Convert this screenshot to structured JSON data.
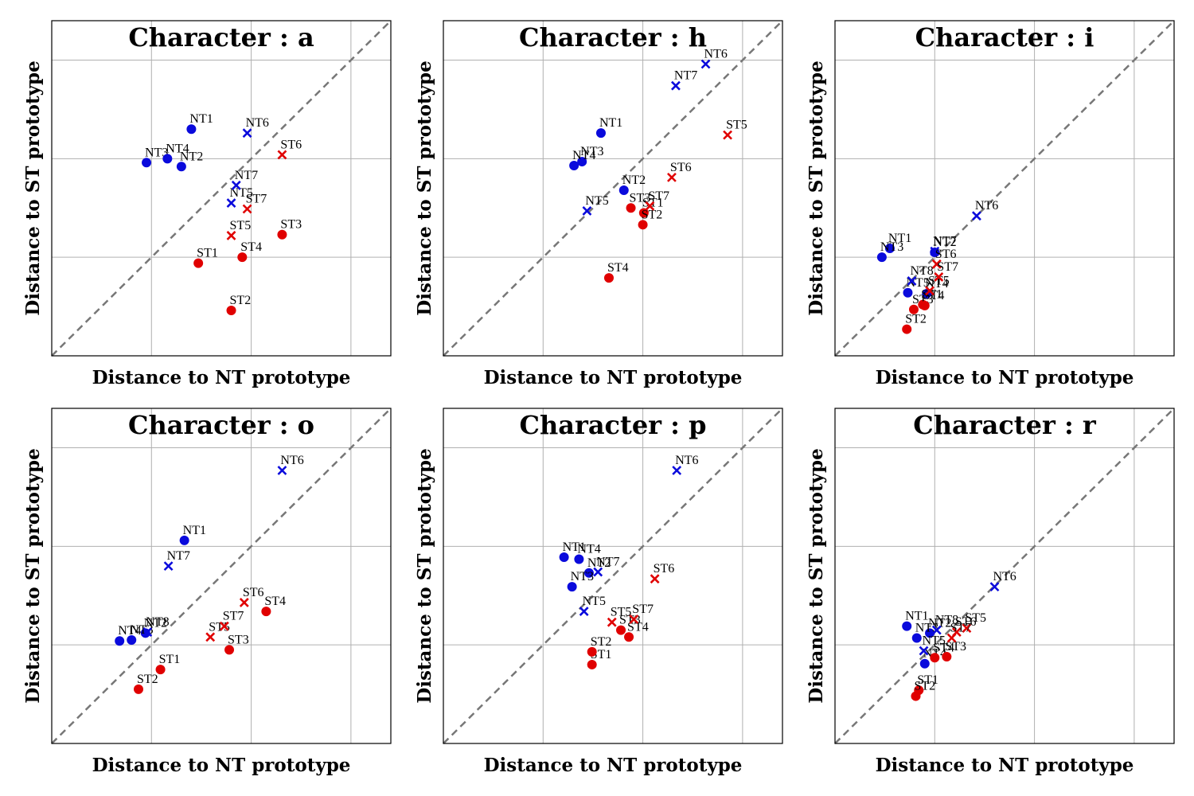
{
  "colors": {
    "NT": "#0a0adc",
    "ST": "#e00000",
    "grid": "#b0b0b0",
    "diagonal": "#777777"
  },
  "chart_data": [
    {
      "type": "scatter",
      "title": "Character : a",
      "xlabel": "Distance to NT prototype",
      "ylabel": "Distance to ST prototype",
      "xlim": [
        0,
        3.4
      ],
      "ylim": [
        0,
        3.4
      ],
      "grid": true,
      "diagonal": true,
      "points": [
        {
          "label": "NT1",
          "group": "NT",
          "marker": "circle",
          "x": 1.4,
          "y": 2.3
        },
        {
          "label": "NT2",
          "group": "NT",
          "marker": "circle",
          "x": 1.3,
          "y": 1.92
        },
        {
          "label": "NT3",
          "group": "NT",
          "marker": "circle",
          "x": 0.95,
          "y": 1.96
        },
        {
          "label": "NT4",
          "group": "NT",
          "marker": "circle",
          "x": 1.16,
          "y": 2.0
        },
        {
          "label": "NT5",
          "group": "NT",
          "marker": "cross",
          "x": 1.8,
          "y": 1.55
        },
        {
          "label": "NT6",
          "group": "NT",
          "marker": "cross",
          "x": 1.96,
          "y": 2.26
        },
        {
          "label": "NT7",
          "group": "NT",
          "marker": "cross",
          "x": 1.85,
          "y": 1.73
        },
        {
          "label": "ST1",
          "group": "ST",
          "marker": "circle",
          "x": 1.47,
          "y": 0.94
        },
        {
          "label": "ST2",
          "group": "ST",
          "marker": "circle",
          "x": 1.8,
          "y": 0.46
        },
        {
          "label": "ST3",
          "group": "ST",
          "marker": "circle",
          "x": 2.31,
          "y": 1.23
        },
        {
          "label": "ST4",
          "group": "ST",
          "marker": "circle",
          "x": 1.91,
          "y": 1.0
        },
        {
          "label": "ST5",
          "group": "ST",
          "marker": "cross",
          "x": 1.8,
          "y": 1.22
        },
        {
          "label": "ST6",
          "group": "ST",
          "marker": "cross",
          "x": 2.31,
          "y": 2.04
        },
        {
          "label": "ST7",
          "group": "ST",
          "marker": "cross",
          "x": 1.96,
          "y": 1.49
        }
      ]
    },
    {
      "type": "scatter",
      "title": "Character : h",
      "xlabel": "Distance to NT prototype",
      "ylabel": "Distance to ST prototype",
      "xlim": [
        0,
        3.4
      ],
      "ylim": [
        0,
        3.4
      ],
      "grid": true,
      "diagonal": true,
      "points": [
        {
          "label": "NT1",
          "group": "NT",
          "marker": "circle",
          "x": 1.58,
          "y": 2.26
        },
        {
          "label": "NT2",
          "group": "NT",
          "marker": "circle",
          "x": 1.81,
          "y": 1.68
        },
        {
          "label": "NT3",
          "group": "NT",
          "marker": "circle",
          "x": 1.39,
          "y": 1.97
        },
        {
          "label": "NT4",
          "group": "NT",
          "marker": "circle",
          "x": 1.31,
          "y": 1.93
        },
        {
          "label": "NT5",
          "group": "NT",
          "marker": "cross",
          "x": 1.44,
          "y": 1.47
        },
        {
          "label": "NT6",
          "group": "NT",
          "marker": "cross",
          "x": 2.63,
          "y": 2.96
        },
        {
          "label": "NT7",
          "group": "NT",
          "marker": "cross",
          "x": 2.33,
          "y": 2.74
        },
        {
          "label": "ST1",
          "group": "ST",
          "marker": "circle",
          "x": 2.01,
          "y": 1.45
        },
        {
          "label": "ST2",
          "group": "ST",
          "marker": "circle",
          "x": 2.0,
          "y": 1.33
        },
        {
          "label": "ST3",
          "group": "ST",
          "marker": "circle",
          "x": 1.88,
          "y": 1.5
        },
        {
          "label": "ST4",
          "group": "ST",
          "marker": "circle",
          "x": 1.66,
          "y": 0.79
        },
        {
          "label": "ST5",
          "group": "ST",
          "marker": "cross",
          "x": 2.85,
          "y": 2.24
        },
        {
          "label": "ST6",
          "group": "ST",
          "marker": "cross",
          "x": 2.29,
          "y": 1.81
        },
        {
          "label": "ST7",
          "group": "ST",
          "marker": "cross",
          "x": 2.07,
          "y": 1.52
        }
      ]
    },
    {
      "type": "scatter",
      "title": "Character : i",
      "xlabel": "Distance to NT prototype",
      "ylabel": "Distance to ST prototype",
      "xlim": [
        0,
        3.4
      ],
      "ylim": [
        0,
        3.4
      ],
      "grid": true,
      "diagonal": true,
      "points": [
        {
          "label": "NT1",
          "group": "NT",
          "marker": "circle",
          "x": 0.55,
          "y": 1.09
        },
        {
          "label": "NT2",
          "group": "NT",
          "marker": "circle",
          "x": 1.0,
          "y": 1.05
        },
        {
          "label": "NT3",
          "group": "NT",
          "marker": "circle",
          "x": 0.47,
          "y": 1.0
        },
        {
          "label": "NT4",
          "group": "NT",
          "marker": "circle",
          "x": 0.92,
          "y": 0.63
        },
        {
          "label": "NT5",
          "group": "NT",
          "marker": "circle",
          "x": 0.73,
          "y": 0.64
        },
        {
          "label": "NT6",
          "group": "NT",
          "marker": "cross",
          "x": 1.42,
          "y": 1.42
        },
        {
          "label": "NT7",
          "group": "NT",
          "marker": "cross",
          "x": 1.0,
          "y": 1.06
        },
        {
          "label": "NT8",
          "group": "NT",
          "marker": "cross",
          "x": 0.77,
          "y": 0.76
        },
        {
          "label": "ST1",
          "group": "ST",
          "marker": "circle",
          "x": 0.88,
          "y": 0.52
        },
        {
          "label": "ST2",
          "group": "ST",
          "marker": "circle",
          "x": 0.72,
          "y": 0.27
        },
        {
          "label": "ST3",
          "group": "ST",
          "marker": "circle",
          "x": 0.79,
          "y": 0.47
        },
        {
          "label": "ST4",
          "group": "ST",
          "marker": "circle",
          "x": 0.9,
          "y": 0.51
        },
        {
          "label": "ST5",
          "group": "ST",
          "marker": "cross",
          "x": 0.95,
          "y": 0.66
        },
        {
          "label": "ST6",
          "group": "ST",
          "marker": "cross",
          "x": 1.02,
          "y": 0.93
        },
        {
          "label": "ST7",
          "group": "ST",
          "marker": "cross",
          "x": 1.04,
          "y": 0.8
        }
      ]
    },
    {
      "type": "scatter",
      "title": "Character : o",
      "xlabel": "Distance to NT prototype",
      "ylabel": "Distance to ST prototype",
      "xlim": [
        0,
        3.4
      ],
      "ylim": [
        0,
        3.4
      ],
      "grid": true,
      "diagonal": true,
      "points": [
        {
          "label": "NT1",
          "group": "NT",
          "marker": "circle",
          "x": 1.33,
          "y": 2.06
        },
        {
          "label": "NT2",
          "group": "NT",
          "marker": "circle",
          "x": 0.94,
          "y": 1.12
        },
        {
          "label": "NT3",
          "group": "NT",
          "marker": "circle",
          "x": 0.8,
          "y": 1.05
        },
        {
          "label": "NT4",
          "group": "NT",
          "marker": "circle",
          "x": 0.68,
          "y": 1.04
        },
        {
          "label": "NT6",
          "group": "NT",
          "marker": "cross",
          "x": 2.31,
          "y": 2.77
        },
        {
          "label": "NT7",
          "group": "NT",
          "marker": "cross",
          "x": 1.17,
          "y": 1.8
        },
        {
          "label": "NT8",
          "group": "NT",
          "marker": "cross",
          "x": 0.96,
          "y": 1.13
        },
        {
          "label": "ST1",
          "group": "ST",
          "marker": "circle",
          "x": 1.09,
          "y": 0.75
        },
        {
          "label": "ST2",
          "group": "ST",
          "marker": "circle",
          "x": 0.87,
          "y": 0.55
        },
        {
          "label": "ST3",
          "group": "ST",
          "marker": "circle",
          "x": 1.78,
          "y": 0.95
        },
        {
          "label": "ST4",
          "group": "ST",
          "marker": "circle",
          "x": 2.15,
          "y": 1.34
        },
        {
          "label": "ST5",
          "group": "ST",
          "marker": "cross",
          "x": 1.59,
          "y": 1.08
        },
        {
          "label": "ST6",
          "group": "ST",
          "marker": "cross",
          "x": 1.93,
          "y": 1.43
        },
        {
          "label": "ST7",
          "group": "ST",
          "marker": "cross",
          "x": 1.73,
          "y": 1.19
        }
      ]
    },
    {
      "type": "scatter",
      "title": "Character : p",
      "xlabel": "Distance to NT prototype",
      "ylabel": "Distance to ST prototype",
      "xlim": [
        0,
        3.4
      ],
      "ylim": [
        0,
        3.4
      ],
      "grid": true,
      "diagonal": true,
      "points": [
        {
          "label": "NT1",
          "group": "NT",
          "marker": "circle",
          "x": 1.21,
          "y": 1.89
        },
        {
          "label": "NT2",
          "group": "NT",
          "marker": "circle",
          "x": 1.46,
          "y": 1.73
        },
        {
          "label": "NT3",
          "group": "NT",
          "marker": "circle",
          "x": 1.29,
          "y": 1.59
        },
        {
          "label": "NT4",
          "group": "NT",
          "marker": "circle",
          "x": 1.36,
          "y": 1.87
        },
        {
          "label": "NT5",
          "group": "NT",
          "marker": "cross",
          "x": 1.41,
          "y": 1.34
        },
        {
          "label": "NT6",
          "group": "NT",
          "marker": "cross",
          "x": 2.34,
          "y": 2.77
        },
        {
          "label": "NT7",
          "group": "NT",
          "marker": "cross",
          "x": 1.55,
          "y": 1.74
        },
        {
          "label": "ST1",
          "group": "ST",
          "marker": "circle",
          "x": 1.49,
          "y": 0.8
        },
        {
          "label": "ST2",
          "group": "ST",
          "marker": "circle",
          "x": 1.49,
          "y": 0.93
        },
        {
          "label": "ST3",
          "group": "ST",
          "marker": "circle",
          "x": 1.78,
          "y": 1.15
        },
        {
          "label": "ST4",
          "group": "ST",
          "marker": "circle",
          "x": 1.86,
          "y": 1.08
        },
        {
          "label": "ST5",
          "group": "ST",
          "marker": "cross",
          "x": 1.69,
          "y": 1.23
        },
        {
          "label": "ST6",
          "group": "ST",
          "marker": "cross",
          "x": 2.12,
          "y": 1.67
        },
        {
          "label": "ST7",
          "group": "ST",
          "marker": "cross",
          "x": 1.91,
          "y": 1.26
        }
      ]
    },
    {
      "type": "scatter",
      "title": "Character : r",
      "xlabel": "Distance to NT prototype",
      "ylabel": "Distance to ST prototype",
      "xlim": [
        0,
        3.4
      ],
      "ylim": [
        0,
        3.4
      ],
      "grid": true,
      "diagonal": true,
      "points": [
        {
          "label": "NT1",
          "group": "NT",
          "marker": "circle",
          "x": 0.72,
          "y": 1.19
        },
        {
          "label": "NT2",
          "group": "NT",
          "marker": "circle",
          "x": 0.95,
          "y": 1.12
        },
        {
          "label": "NT3",
          "group": "NT",
          "marker": "circle",
          "x": 0.82,
          "y": 1.07
        },
        {
          "label": "NT4",
          "group": "NT",
          "marker": "circle",
          "x": 0.9,
          "y": 0.81
        },
        {
          "label": "NT5",
          "group": "NT",
          "marker": "cross",
          "x": 0.89,
          "y": 0.94
        },
        {
          "label": "NT6",
          "group": "NT",
          "marker": "cross",
          "x": 1.6,
          "y": 1.59
        },
        {
          "label": "NT8",
          "group": "NT",
          "marker": "cross",
          "x": 1.02,
          "y": 1.15
        },
        {
          "label": "ST1",
          "group": "ST",
          "marker": "circle",
          "x": 0.84,
          "y": 0.54
        },
        {
          "label": "ST2",
          "group": "ST",
          "marker": "circle",
          "x": 0.81,
          "y": 0.48
        },
        {
          "label": "ST3",
          "group": "ST",
          "marker": "circle",
          "x": 1.12,
          "y": 0.88
        },
        {
          "label": "ST4",
          "group": "ST",
          "marker": "circle",
          "x": 1.0,
          "y": 0.87
        },
        {
          "label": "ST5",
          "group": "ST",
          "marker": "cross",
          "x": 1.32,
          "y": 1.17
        },
        {
          "label": "ST6",
          "group": "ST",
          "marker": "cross",
          "x": 1.22,
          "y": 1.13
        },
        {
          "label": "ST7",
          "group": "ST",
          "marker": "cross",
          "x": 1.17,
          "y": 1.07
        }
      ]
    }
  ]
}
